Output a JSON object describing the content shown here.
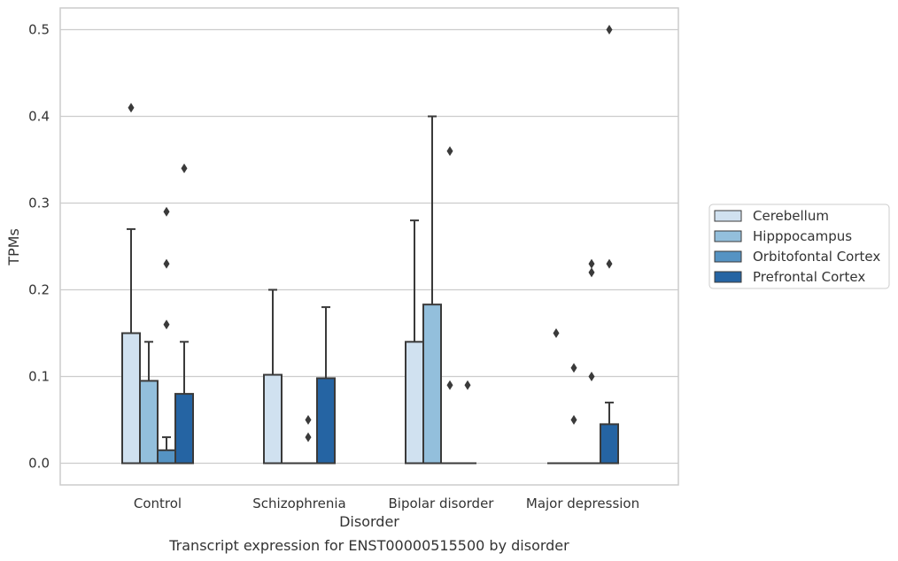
{
  "chart_data": {
    "type": "bar",
    "caption": "Transcript expression for ENST00000515500 by disorder",
    "xlabel": "Disorder",
    "ylabel": "TPMs",
    "ylim": [
      -0.025,
      0.525
    ],
    "yticks": [
      0.0,
      0.1,
      0.2,
      0.3,
      0.4,
      0.5
    ],
    "ytick_labels": [
      "0.0",
      "0.1",
      "0.2",
      "0.3",
      "0.4",
      "0.5"
    ],
    "grid": true,
    "legend_position": "right",
    "categories": [
      "Control",
      "Schizophrenia",
      "Bipolar disorder",
      "Major depression"
    ],
    "series": [
      {
        "name": "Cerebellum",
        "color": "#d0e1f0",
        "values": [
          0.15,
          0.102,
          0.14,
          0.0
        ],
        "whisker_high": [
          0.27,
          0.2,
          0.28,
          null
        ],
        "outliers": [
          [
            0.41
          ],
          [],
          [],
          [
            0.15
          ]
        ]
      },
      {
        "name": "Hipppocampus",
        "color": "#93bfdc",
        "values": [
          0.095,
          0.0,
          0.183,
          0.0
        ],
        "whisker_high": [
          0.14,
          null,
          0.4,
          null
        ],
        "outliers": [
          [],
          [],
          [],
          [
            0.11,
            0.05
          ]
        ]
      },
      {
        "name": "Orbitofontal Cortex",
        "color": "#5593c3",
        "values": [
          0.015,
          0.0,
          0.0,
          0.0
        ],
        "whisker_high": [
          0.03,
          null,
          null,
          null
        ],
        "outliers": [
          [
            0.29,
            0.23,
            0.16
          ],
          [
            0.05,
            0.03
          ],
          [
            0.36,
            0.09
          ],
          [
            0.23,
            0.22,
            0.1
          ]
        ]
      },
      {
        "name": "Prefrontal Cortex",
        "color": "#2564a3",
        "values": [
          0.08,
          0.098,
          0.0,
          0.045
        ],
        "whisker_high": [
          0.14,
          0.18,
          null,
          0.07
        ],
        "outliers": [
          [
            0.34
          ],
          [],
          [
            0.09
          ],
          [
            0.5,
            0.23
          ]
        ]
      }
    ]
  }
}
